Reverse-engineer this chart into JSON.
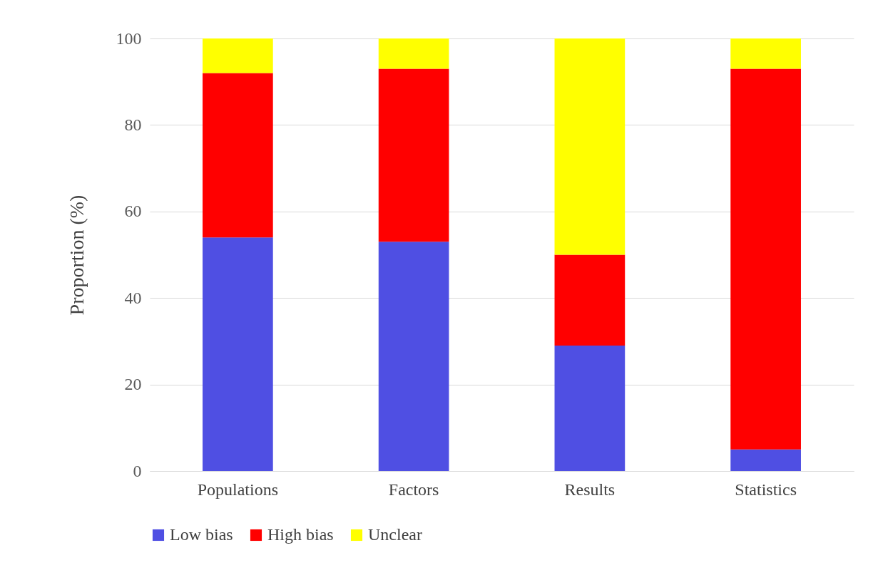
{
  "chart_data": {
    "type": "bar",
    "stacked": true,
    "ylabel": "Proportion (%)",
    "categories": [
      "Populations",
      "Factors",
      "Results",
      "Statistics"
    ],
    "series": [
      {
        "name": "Low bias",
        "color": "#4f4fe3",
        "values": [
          54,
          53,
          29,
          5
        ]
      },
      {
        "name": "High bias",
        "color": "#ff0000",
        "values": [
          38,
          40,
          21,
          88
        ]
      },
      {
        "name": "Unclear",
        "color": "#ffff00",
        "values": [
          8,
          7,
          50,
          7
        ]
      }
    ],
    "ylim": [
      0,
      100
    ],
    "yticks": [
      0,
      20,
      40,
      60,
      80,
      100
    ],
    "grid": "y",
    "legend": "bottom"
  }
}
